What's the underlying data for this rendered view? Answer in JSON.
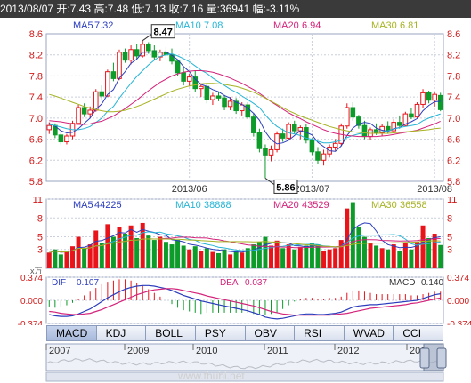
{
  "header": {
    "date": "2013/08/07",
    "open_label": "开:",
    "open": "7.43",
    "high_label": "高:",
    "high": "7.48",
    "low_label": "低:",
    "low": "7.13",
    "close_label": "收:",
    "close": "7.16",
    "volume_label": "量:",
    "volume": "36941",
    "change_label": "幅:",
    "change": "-3.11%"
  },
  "colors": {
    "up": "#e8141a",
    "down": "#0d9b2a",
    "ma5": "#2b3dbd",
    "ma10": "#26b5d6",
    "ma20": "#d4237a",
    "ma30": "#a7b322",
    "grid": "#c9cfdc",
    "axis_text": "#d11a1a"
  },
  "tabs": [
    "MACD",
    "KDJ",
    "BOLL",
    "PSY",
    "OBV",
    "RSI",
    "WVAD",
    "CCI"
  ],
  "active_tab": "MACD",
  "nav_years": [
    "2007",
    "2009",
    "2010",
    "2011",
    "2012",
    "201"
  ],
  "watermark": "www.thuhi.net",
  "chart_data": [
    {
      "type": "candlestick",
      "ylim": [
        5.8,
        8.6
      ],
      "y_ticks": [
        "8.6",
        "8.2",
        "7.8",
        "7.4",
        "7.0",
        "6.6",
        "6.2",
        "5.8"
      ],
      "x_ticks": [
        "2013/06",
        "2013/07",
        "2013/08"
      ],
      "legend": [
        {
          "name": "MA5",
          "value": "7.32"
        },
        {
          "name": "MA10",
          "value": "7.08"
        },
        {
          "name": "MA20",
          "value": "6.94"
        },
        {
          "name": "MA30",
          "value": "6.81"
        }
      ],
      "annotations": [
        {
          "text": "8.47",
          "value": 8.47,
          "label": "high"
        },
        {
          "text": "5.86",
          "value": 5.86,
          "label": "low"
        }
      ],
      "candles": [
        [
          6.78,
          6.92,
          6.7,
          6.86
        ],
        [
          6.86,
          6.9,
          6.62,
          6.68
        ],
        [
          6.68,
          6.72,
          6.5,
          6.55
        ],
        [
          6.55,
          6.7,
          6.5,
          6.66
        ],
        [
          6.66,
          6.95,
          6.6,
          6.9
        ],
        [
          6.9,
          7.25,
          6.88,
          7.2
        ],
        [
          7.2,
          7.28,
          7.02,
          7.08
        ],
        [
          7.08,
          7.22,
          7.0,
          7.15
        ],
        [
          7.15,
          7.55,
          7.12,
          7.5
        ],
        [
          7.5,
          7.62,
          7.35,
          7.42
        ],
        [
          7.42,
          7.92,
          7.4,
          7.88
        ],
        [
          7.88,
          8.05,
          7.7,
          7.75
        ],
        [
          7.75,
          8.3,
          7.72,
          8.25
        ],
        [
          8.25,
          8.32,
          8.05,
          8.1
        ],
        [
          8.1,
          8.38,
          8.02,
          8.3
        ],
        [
          8.3,
          8.4,
          8.12,
          8.18
        ],
        [
          8.18,
          8.47,
          8.15,
          8.4
        ],
        [
          8.4,
          8.44,
          8.22,
          8.28
        ],
        [
          8.28,
          8.38,
          8.1,
          8.16
        ],
        [
          8.16,
          8.3,
          8.08,
          8.25
        ],
        [
          8.25,
          8.35,
          8.12,
          8.2
        ],
        [
          8.2,
          8.32,
          8.02,
          8.08
        ],
        [
          8.08,
          8.1,
          7.8,
          7.86
        ],
        [
          7.86,
          7.95,
          7.62,
          7.7
        ],
        [
          7.7,
          7.84,
          7.6,
          7.78
        ],
        [
          7.78,
          7.9,
          7.5,
          7.56
        ],
        [
          7.56,
          7.66,
          7.4,
          7.6
        ],
        [
          7.6,
          7.64,
          7.28,
          7.35
        ],
        [
          7.35,
          7.48,
          7.25,
          7.42
        ],
        [
          7.42,
          7.5,
          7.32,
          7.38
        ],
        [
          7.38,
          7.44,
          7.15,
          7.22
        ],
        [
          7.22,
          7.4,
          7.15,
          7.32
        ],
        [
          7.32,
          7.38,
          7.08,
          7.14
        ],
        [
          7.14,
          7.3,
          7.05,
          7.25
        ],
        [
          7.25,
          7.3,
          6.98,
          7.02
        ],
        [
          7.02,
          7.1,
          6.65,
          6.72
        ],
        [
          6.72,
          6.8,
          6.35,
          6.42
        ],
        [
          6.42,
          6.5,
          5.86,
          6.3
        ],
        [
          6.3,
          6.48,
          6.18,
          6.4
        ],
        [
          6.4,
          6.75,
          6.35,
          6.7
        ],
        [
          6.7,
          6.8,
          6.55,
          6.62
        ],
        [
          6.62,
          6.92,
          6.58,
          6.88
        ],
        [
          6.88,
          6.95,
          6.7,
          6.76
        ],
        [
          6.76,
          6.86,
          6.6,
          6.82
        ],
        [
          6.82,
          6.88,
          6.52,
          6.58
        ],
        [
          6.58,
          6.62,
          6.3,
          6.36
        ],
        [
          6.36,
          6.45,
          6.12,
          6.2
        ],
        [
          6.2,
          6.4,
          6.1,
          6.32
        ],
        [
          6.32,
          6.5,
          6.25,
          6.45
        ],
        [
          6.45,
          6.6,
          6.38,
          6.52
        ],
        [
          6.52,
          6.9,
          6.48,
          6.85
        ],
        [
          6.85,
          7.28,
          6.8,
          7.2
        ],
        [
          7.2,
          7.3,
          6.95,
          7.02
        ],
        [
          7.02,
          7.06,
          6.8,
          6.86
        ],
        [
          6.86,
          6.95,
          6.6,
          6.65
        ],
        [
          6.65,
          6.82,
          6.58,
          6.78
        ],
        [
          6.78,
          6.9,
          6.68,
          6.72
        ],
        [
          6.72,
          6.88,
          6.66,
          6.84
        ],
        [
          6.84,
          6.94,
          6.7,
          6.76
        ],
        [
          6.76,
          6.98,
          6.72,
          6.92
        ],
        [
          6.92,
          7.05,
          6.8,
          6.86
        ],
        [
          6.86,
          7.12,
          6.84,
          7.08
        ],
        [
          7.08,
          7.2,
          6.98,
          7.02
        ],
        [
          7.02,
          7.3,
          7.0,
          7.26
        ],
        [
          7.26,
          7.55,
          7.2,
          7.48
        ],
        [
          7.48,
          7.52,
          7.28,
          7.34
        ],
        [
          7.34,
          7.5,
          7.22,
          7.45
        ],
        [
          7.43,
          7.48,
          7.13,
          7.16
        ]
      ],
      "series": [
        {
          "name": "MA5",
          "values": [
            6.9,
            6.85,
            6.76,
            6.72,
            6.73,
            6.8,
            6.9,
            7.0,
            7.17,
            7.27,
            7.45,
            7.54,
            7.76,
            7.88,
            8.04,
            8.12,
            8.25,
            8.25,
            8.26,
            8.25,
            8.26,
            8.19,
            8.11,
            7.98,
            7.88,
            7.74,
            7.64,
            7.6,
            7.54,
            7.5,
            7.43,
            7.38,
            7.3,
            7.26,
            7.19,
            7.09,
            6.96,
            6.74,
            6.59,
            6.51,
            6.53,
            6.58,
            6.67,
            6.76,
            6.73,
            6.68,
            6.54,
            6.46,
            6.38,
            6.37,
            6.47,
            6.67,
            6.81,
            6.89,
            6.92,
            6.9,
            6.81,
            6.77,
            6.75,
            6.8,
            6.82,
            6.89,
            6.93,
            6.99,
            7.14,
            7.24,
            7.31,
            7.32
          ]
        },
        {
          "name": "MA10",
          "values": [
            6.88,
            6.86,
            6.83,
            6.8,
            6.78,
            6.78,
            6.8,
            6.84,
            6.92,
            7.0,
            7.13,
            7.22,
            7.38,
            7.52,
            7.66,
            7.79,
            7.9,
            8.01,
            8.1,
            8.17,
            8.2,
            8.22,
            8.18,
            8.13,
            8.07,
            7.99,
            7.91,
            7.85,
            7.76,
            7.69,
            7.62,
            7.55,
            7.49,
            7.42,
            7.35,
            7.28,
            7.2,
            7.06,
            6.94,
            6.84,
            6.78,
            6.72,
            6.7,
            6.67,
            6.62,
            6.6,
            6.56,
            6.53,
            6.53,
            6.55,
            6.58,
            6.63,
            6.67,
            6.7,
            6.72,
            6.74,
            6.74,
            6.74,
            6.76,
            6.79,
            6.82,
            6.84,
            6.86,
            6.88,
            6.95,
            7.0,
            7.04,
            7.08
          ]
        },
        {
          "name": "MA20",
          "values": [
            6.95,
            6.94,
            6.93,
            6.91,
            6.89,
            6.88,
            6.88,
            6.89,
            6.92,
            6.94,
            6.99,
            7.04,
            7.11,
            7.18,
            7.26,
            7.34,
            7.43,
            7.52,
            7.6,
            7.68,
            7.74,
            7.8,
            7.84,
            7.87,
            7.89,
            7.9,
            7.9,
            7.89,
            7.87,
            7.84,
            7.8,
            7.76,
            7.71,
            7.66,
            7.6,
            7.54,
            7.47,
            7.39,
            7.31,
            7.24,
            7.17,
            7.1,
            7.04,
            6.99,
            6.93,
            6.88,
            6.83,
            6.78,
            6.74,
            6.71,
            6.69,
            6.67,
            6.66,
            6.65,
            6.65,
            6.65,
            6.65,
            6.66,
            6.67,
            6.69,
            6.71,
            6.73,
            6.75,
            6.77,
            6.81,
            6.85,
            6.89,
            6.94
          ]
        },
        {
          "name": "MA30",
          "values": [
            7.45,
            7.42,
            7.38,
            7.34,
            7.3,
            7.26,
            7.22,
            7.19,
            7.16,
            7.14,
            7.12,
            7.12,
            7.13,
            7.15,
            7.18,
            7.22,
            7.26,
            7.31,
            7.36,
            7.41,
            7.46,
            7.51,
            7.55,
            7.58,
            7.61,
            7.63,
            7.65,
            7.66,
            7.66,
            7.65,
            7.64,
            7.62,
            7.6,
            7.57,
            7.53,
            7.49,
            7.44,
            7.38,
            7.32,
            7.26,
            7.2,
            7.14,
            7.09,
            7.04,
            7.0,
            6.96,
            6.92,
            6.88,
            6.84,
            6.81,
            6.78,
            6.76,
            6.74,
            6.73,
            6.72,
            6.71,
            6.71,
            6.71,
            6.71,
            6.72,
            6.73,
            6.74,
            6.75,
            6.76,
            6.77,
            6.78,
            6.8,
            6.81
          ]
        }
      ]
    },
    {
      "type": "bar",
      "title": "volume",
      "ylim": [
        0,
        11
      ],
      "y_ticks": [
        "11",
        "8",
        "5",
        "3"
      ],
      "legend": [
        {
          "name": "MA5",
          "value": "44225"
        },
        {
          "name": "MA10",
          "value": "38888"
        },
        {
          "name": "MA20",
          "value": "43529"
        },
        {
          "name": "MA30",
          "value": "36558"
        }
      ],
      "unit": "x万",
      "values": [
        2.5,
        3,
        2.2,
        2.8,
        3.5,
        5,
        3.2,
        3.8,
        6,
        4,
        7,
        5,
        6.5,
        5.5,
        6.8,
        4.8,
        7.2,
        5.2,
        4.5,
        5,
        4.2,
        3.8,
        4.5,
        3.6,
        3,
        3.5,
        2.8,
        3.2,
        2.6,
        2.4,
        3,
        2.2,
        2.8,
        2.5,
        3.2,
        3.8,
        4.2,
        5,
        3.6,
        4.4,
        3.2,
        3.8,
        3,
        3.4,
        3.6,
        4,
        3.8,
        2.8,
        3,
        3.2,
        4.5,
        9.5,
        10.5,
        6.5,
        5,
        4,
        3.6,
        3.2,
        3,
        3.8,
        2.8,
        4,
        3,
        4.2,
        6.8,
        4.8,
        5.5,
        3.7
      ]
    },
    {
      "type": "line",
      "title": "MACD",
      "ylim": [
        -0.374,
        0.374
      ],
      "y_ticks": [
        "0.374",
        "0.000",
        "-0.374"
      ],
      "legend": [
        {
          "name": "DIF",
          "value": "0.107"
        },
        {
          "name": "DEA",
          "value": "0.037"
        },
        {
          "name": "MACD",
          "value": "0.140"
        }
      ],
      "series": [
        {
          "name": "DIF",
          "values": [
            -0.23,
            -0.25,
            -0.26,
            -0.26,
            -0.25,
            -0.22,
            -0.18,
            -0.14,
            -0.08,
            -0.02,
            0.04,
            0.09,
            0.14,
            0.18,
            0.21,
            0.23,
            0.24,
            0.24,
            0.23,
            0.21,
            0.19,
            0.16,
            0.12,
            0.08,
            0.05,
            0.02,
            -0.01,
            -0.03,
            -0.05,
            -0.07,
            -0.09,
            -0.11,
            -0.13,
            -0.15,
            -0.17,
            -0.2,
            -0.23,
            -0.27,
            -0.29,
            -0.3,
            -0.29,
            -0.27,
            -0.25,
            -0.23,
            -0.22,
            -0.22,
            -0.23,
            -0.23,
            -0.22,
            -0.21,
            -0.19,
            -0.15,
            -0.11,
            -0.09,
            -0.08,
            -0.07,
            -0.07,
            -0.06,
            -0.05,
            -0.04,
            -0.03,
            -0.02,
            -0.01,
            0.0,
            0.03,
            0.06,
            0.09,
            0.107
          ]
        },
        {
          "name": "DEA",
          "values": [
            -0.18,
            -0.19,
            -0.21,
            -0.22,
            -0.23,
            -0.23,
            -0.22,
            -0.21,
            -0.18,
            -0.15,
            -0.11,
            -0.07,
            -0.03,
            0.01,
            0.05,
            0.09,
            0.12,
            0.15,
            0.17,
            0.18,
            0.19,
            0.19,
            0.18,
            0.16,
            0.14,
            0.12,
            0.1,
            0.07,
            0.05,
            0.03,
            0.01,
            -0.01,
            -0.03,
            -0.05,
            -0.07,
            -0.09,
            -0.12,
            -0.15,
            -0.18,
            -0.2,
            -0.22,
            -0.23,
            -0.24,
            -0.24,
            -0.24,
            -0.24,
            -0.24,
            -0.24,
            -0.24,
            -0.23,
            -0.22,
            -0.21,
            -0.19,
            -0.17,
            -0.15,
            -0.13,
            -0.12,
            -0.11,
            -0.1,
            -0.09,
            -0.08,
            -0.07,
            -0.05,
            -0.04,
            -0.02,
            0.0,
            0.02,
            0.037
          ]
        },
        {
          "name": "MACD",
          "values": [
            -0.1,
            -0.12,
            -0.1,
            -0.08,
            -0.04,
            0.02,
            0.08,
            0.14,
            0.2,
            0.26,
            0.3,
            0.32,
            0.34,
            0.34,
            0.32,
            0.28,
            0.24,
            0.18,
            0.12,
            0.06,
            0.0,
            -0.06,
            -0.12,
            -0.16,
            -0.18,
            -0.2,
            -0.22,
            -0.2,
            -0.2,
            -0.2,
            -0.2,
            -0.2,
            -0.2,
            -0.2,
            -0.2,
            -0.22,
            -0.22,
            -0.24,
            -0.22,
            -0.2,
            -0.14,
            -0.08,
            -0.02,
            0.02,
            0.04,
            0.04,
            0.02,
            0.02,
            0.04,
            0.04,
            0.06,
            0.12,
            0.16,
            0.16,
            0.14,
            0.12,
            0.1,
            0.1,
            0.1,
            0.1,
            0.1,
            0.1,
            0.08,
            0.08,
            0.1,
            0.12,
            0.14,
            0.14
          ]
        }
      ]
    }
  ]
}
